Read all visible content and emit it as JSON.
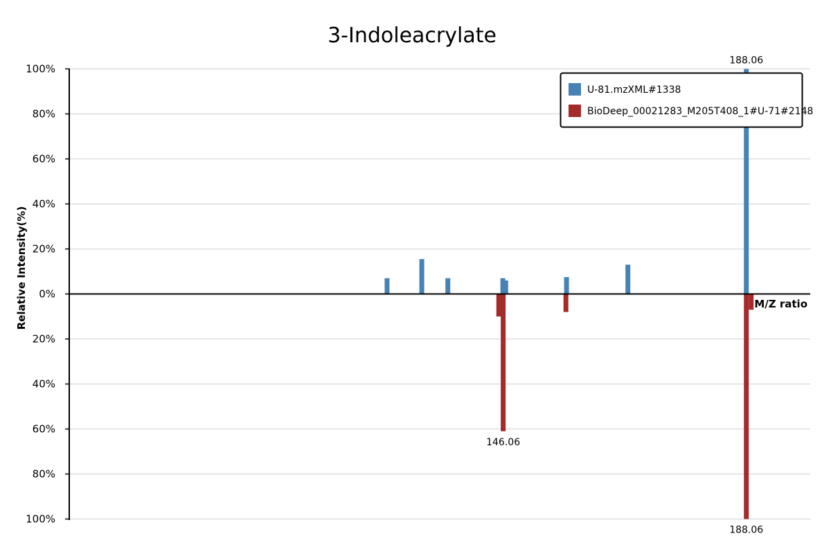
{
  "chart_data": {
    "type": "bar",
    "title": "3-Indoleacrylate",
    "xlabel": "M/Z ratio",
    "ylabel": "Relative Intensity(%)",
    "ylim_top": [
      0,
      100
    ],
    "ylim_bottom": [
      0,
      100
    ],
    "y_ticks_top": [
      "100%",
      "80%",
      "60%",
      "40%",
      "20%",
      "0%"
    ],
    "y_ticks_bottom": [
      "20%",
      "40%",
      "60%",
      "80%",
      "100%"
    ],
    "grid": true,
    "legend_position": "top-right",
    "series": [
      {
        "name": "U-81.mzXML#1338",
        "direction": "up",
        "color": "#4682b4",
        "peaks": [
          {
            "mz": 126.0,
            "intensity": 7
          },
          {
            "mz": 132.0,
            "intensity": 15.5
          },
          {
            "mz": 136.5,
            "intensity": 7
          },
          {
            "mz": 146.0,
            "intensity": 7
          },
          {
            "mz": 146.5,
            "intensity": 6
          },
          {
            "mz": 157.0,
            "intensity": 7.5
          },
          {
            "mz": 167.6,
            "intensity": 13
          },
          {
            "mz": 188.06,
            "intensity": 100
          }
        ]
      },
      {
        "name": "BioDeep_00021283_M205T408_1#U-71#2148",
        "direction": "down",
        "color": "#a52a2a",
        "peaks": [
          {
            "mz": 145.3,
            "intensity": 10
          },
          {
            "mz": 146.06,
            "intensity": 61
          },
          {
            "mz": 156.9,
            "intensity": 8
          },
          {
            "mz": 188.06,
            "intensity": 100
          },
          {
            "mz": 188.9,
            "intensity": 7
          }
        ]
      }
    ],
    "annotations": [
      {
        "text": "188.06",
        "series": 0,
        "peak": 7
      },
      {
        "text": "146.06",
        "series": 1,
        "peak": 1
      },
      {
        "text": "188.06",
        "series": 1,
        "peak": 3
      }
    ]
  }
}
